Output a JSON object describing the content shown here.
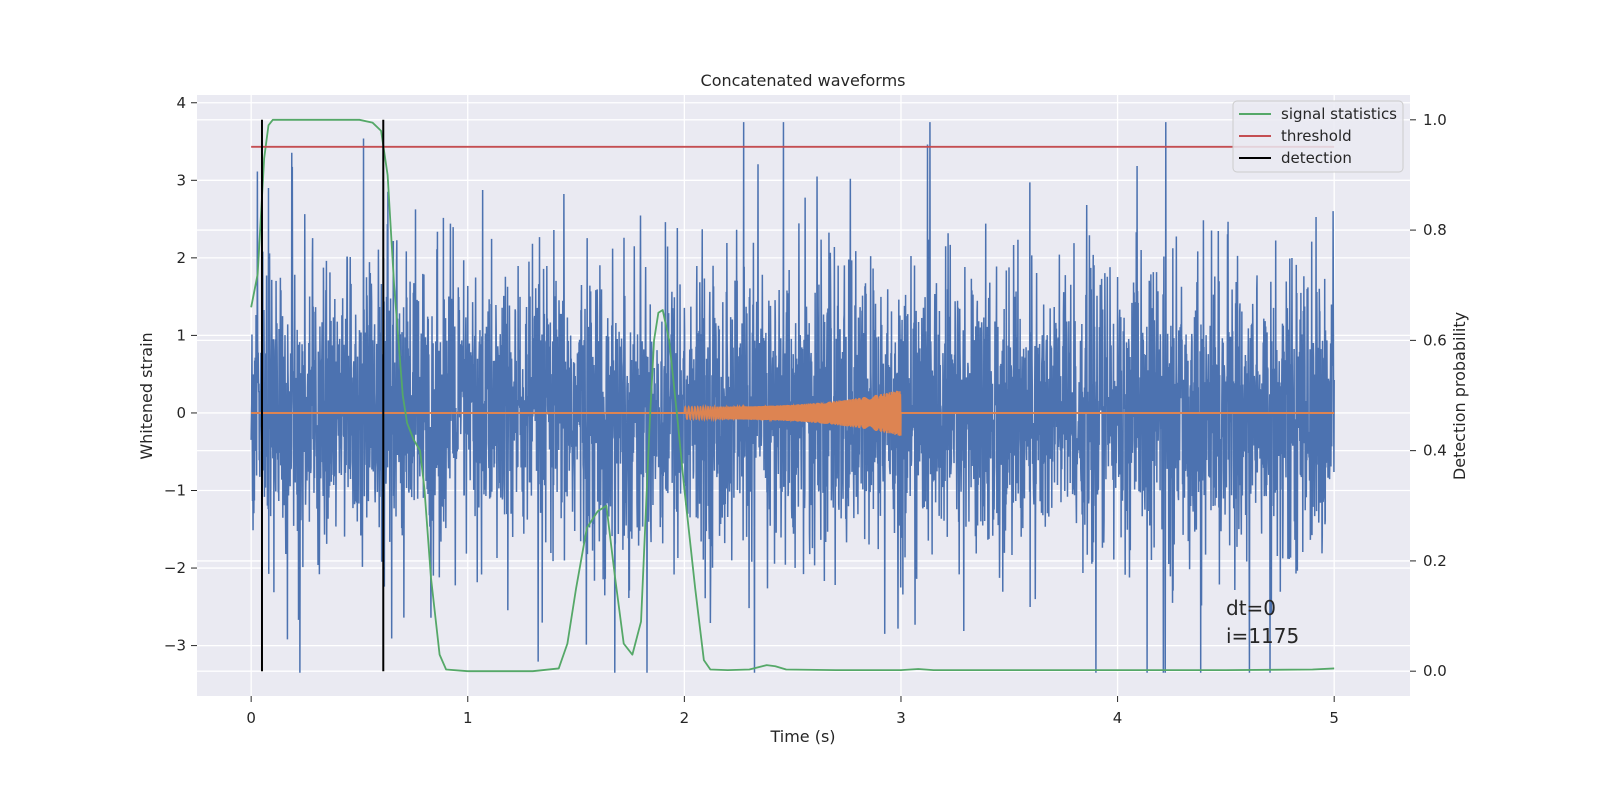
{
  "chart_data": {
    "type": "line",
    "title": "Concatenated waveforms",
    "xlabel": "Time (s)",
    "ylabel_left": "Whitened strain",
    "ylabel_right": "Detection probability",
    "xlim": [
      -0.25,
      5.35
    ],
    "ylim_left": [
      -3.65,
      4.1
    ],
    "ylim_right": [
      -0.045,
      1.045
    ],
    "xticks": [
      0,
      1,
      2,
      3,
      4,
      5
    ],
    "xtick_labels": [
      "0",
      "1",
      "2",
      "3",
      "4",
      "5"
    ],
    "yticks_left": [
      4,
      3,
      2,
      1,
      0,
      -1,
      -2,
      -3
    ],
    "ytick_labels_left": [
      "4",
      "3",
      "2",
      "1",
      "0",
      "−1",
      "−2",
      "−3"
    ],
    "yticks_right": [
      1.0,
      0.8,
      0.6,
      0.4,
      0.2,
      0.0
    ],
    "ytick_labels_right": [
      "1.0",
      "0.8",
      "0.6",
      "0.4",
      "0.2",
      "0.0"
    ],
    "grid": true,
    "legend_position": "top-right",
    "series": [
      {
        "name": "",
        "axis": "left",
        "color": "#4c72b0",
        "kind": "noise",
        "x_range": [
          0,
          5
        ],
        "amplitude_envelope": [
          -3.35,
          3.75
        ]
      },
      {
        "name": "",
        "axis": "left",
        "color": "#dd8452",
        "kind": "chirp",
        "x_range": [
          2.0,
          3.0
        ],
        "amplitude_start": 0.08,
        "amplitude_end": 0.3
      },
      {
        "name": "signal statistics",
        "axis": "right",
        "color": "#55a868",
        "x": [
          0.0,
          0.03,
          0.06,
          0.08,
          0.1,
          0.15,
          0.3,
          0.5,
          0.56,
          0.6,
          0.63,
          0.66,
          0.7,
          0.72,
          0.75,
          0.78,
          0.8,
          0.83,
          0.87,
          0.9,
          1.0,
          1.3,
          1.42,
          1.46,
          1.5,
          1.55,
          1.6,
          1.64,
          1.68,
          1.72,
          1.76,
          1.8,
          1.84,
          1.86,
          1.88,
          1.9,
          1.93,
          1.97,
          2.0,
          2.05,
          2.09,
          2.12,
          2.2,
          2.3,
          2.38,
          2.42,
          2.47,
          2.7,
          3.0,
          3.08,
          3.15,
          3.5,
          4.0,
          4.5,
          4.9,
          5.0
        ],
        "y": [
          0.66,
          0.72,
          0.93,
          0.99,
          1.0,
          1.0,
          1.0,
          1.0,
          0.995,
          0.98,
          0.9,
          0.7,
          0.5,
          0.45,
          0.42,
          0.4,
          0.33,
          0.17,
          0.03,
          0.003,
          0.0,
          0.0,
          0.005,
          0.05,
          0.15,
          0.26,
          0.29,
          0.3,
          0.17,
          0.05,
          0.03,
          0.09,
          0.45,
          0.6,
          0.65,
          0.655,
          0.6,
          0.45,
          0.33,
          0.15,
          0.02,
          0.003,
          0.002,
          0.003,
          0.011,
          0.009,
          0.003,
          0.002,
          0.002,
          0.004,
          0.002,
          0.002,
          0.002,
          0.002,
          0.003,
          0.005
        ]
      },
      {
        "name": "threshold",
        "axis": "right",
        "color": "#c44e52",
        "x": [
          0,
          5
        ],
        "y": [
          0.951,
          0.951
        ]
      },
      {
        "name": "detection",
        "axis": "right",
        "color": "#000000",
        "kind": "vlines",
        "x": [
          0.05,
          0.61
        ],
        "y_range": [
          0.0,
          1.0
        ]
      }
    ],
    "annotations": [
      "dt=0",
      "i=1175"
    ]
  }
}
